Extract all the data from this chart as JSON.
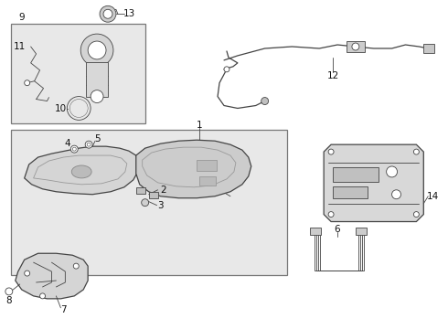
{
  "bg_color": "#ffffff",
  "line_color": "#444444",
  "label_color": "#111111",
  "fig_width": 4.9,
  "fig_height": 3.6,
  "dpi": 100,
  "lw_thin": 0.6,
  "lw_med": 0.9,
  "lw_thick": 1.2,
  "label_fs": 7.5,
  "box_face": "#e8e8e8",
  "box_edge": "#777777",
  "part_face": "#d0d0d0",
  "part_edge": "#444444"
}
